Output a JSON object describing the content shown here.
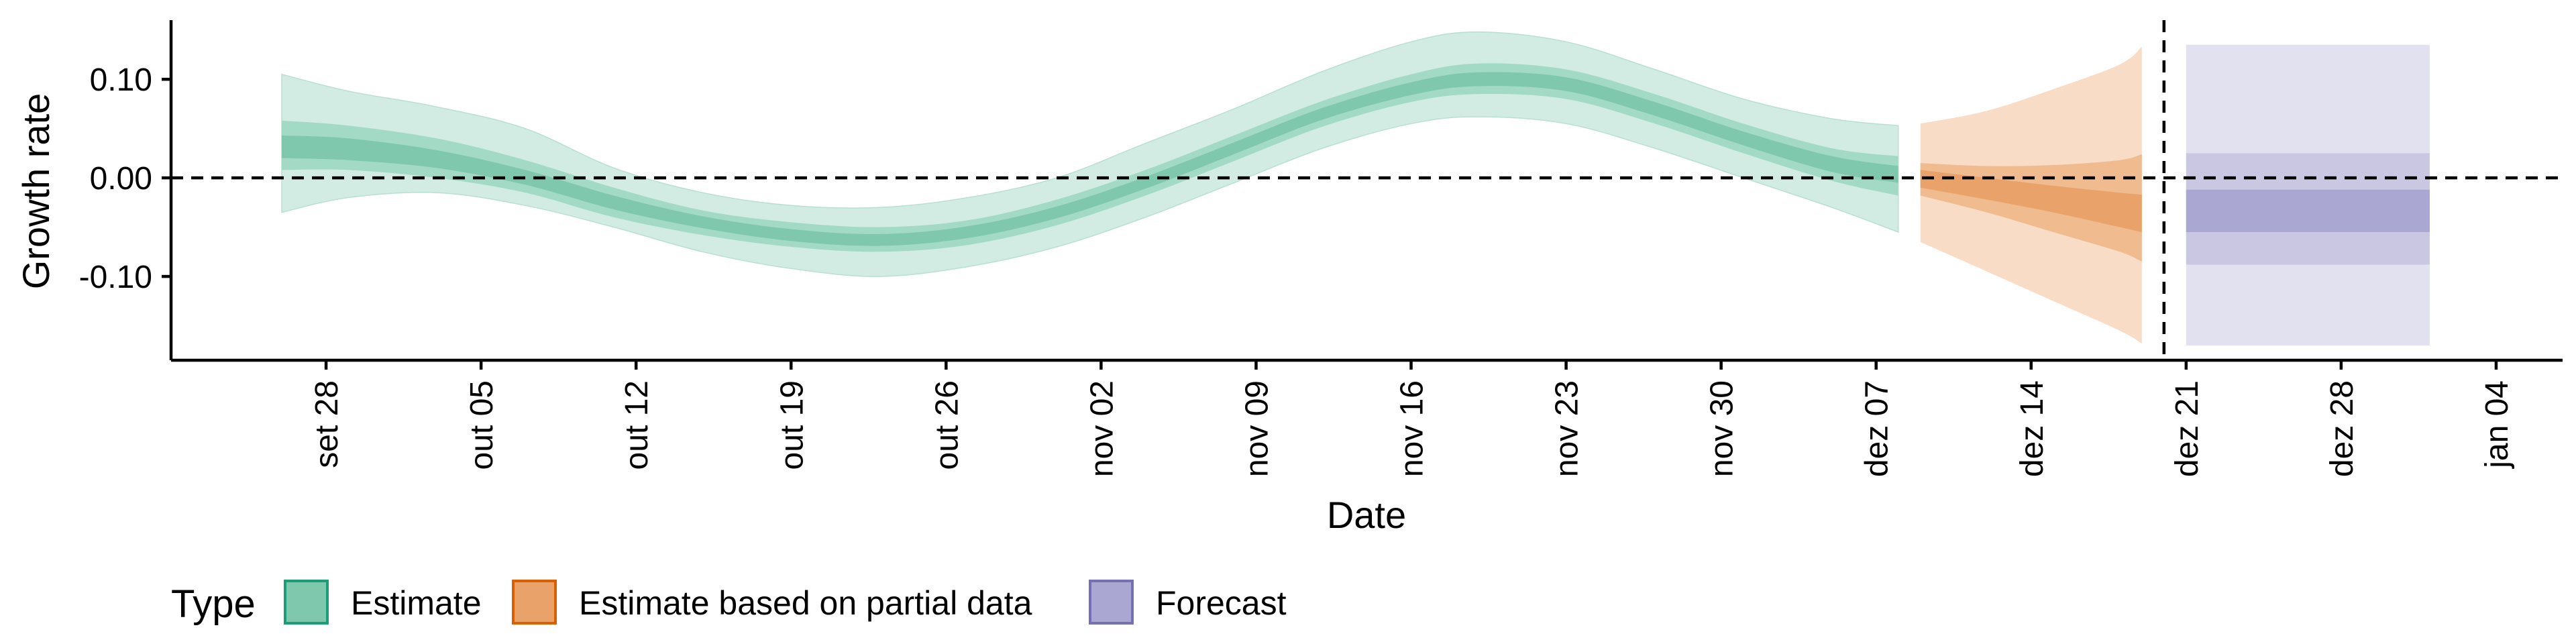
{
  "chart_data": {
    "type": "area",
    "xlabel": "Date",
    "ylabel": "Growth rate",
    "x_axis_type": "date",
    "xlim": [
      "2020-09-21",
      "2021-01-07"
    ],
    "ylim": [
      -0.185,
      0.16
    ],
    "y_ticks": [
      {
        "value": 0.1,
        "label": "0.10"
      },
      {
        "value": 0.0,
        "label": "0.00"
      },
      {
        "value": -0.1,
        "label": "-0.10"
      }
    ],
    "x_ticks": [
      {
        "date": "2020-09-28",
        "label": "set 28"
      },
      {
        "date": "2020-10-05",
        "label": "out 05"
      },
      {
        "date": "2020-10-12",
        "label": "out 12"
      },
      {
        "date": "2020-10-19",
        "label": "out 19"
      },
      {
        "date": "2020-10-26",
        "label": "out 26"
      },
      {
        "date": "2020-11-02",
        "label": "nov 02"
      },
      {
        "date": "2020-11-09",
        "label": "nov 09"
      },
      {
        "date": "2020-11-16",
        "label": "nov 16"
      },
      {
        "date": "2020-11-23",
        "label": "nov 23"
      },
      {
        "date": "2020-11-30",
        "label": "nov 30"
      },
      {
        "date": "2020-12-07",
        "label": "dez 07"
      },
      {
        "date": "2020-12-14",
        "label": "dez 14"
      },
      {
        "date": "2020-12-21",
        "label": "dez 21"
      },
      {
        "date": "2020-12-28",
        "label": "dez 28"
      },
      {
        "date": "2021-01-04",
        "label": "jan 04"
      }
    ],
    "reference_lines": {
      "horizontal_y": 0.0,
      "vertical_date": "2020-12-20",
      "style": "dashed"
    },
    "legend": {
      "title": "Type",
      "position": "bottom-left",
      "entries": [
        {
          "label": "Estimate",
          "fill": "#7fc8ad",
          "stroke": "#1b9e77"
        },
        {
          "label": "Estimate based on partial data",
          "fill": "#e9a36a",
          "stroke": "#d95f02"
        },
        {
          "label": "Forecast",
          "fill": "#aaa8d2",
          "stroke": "#7570b3"
        }
      ]
    },
    "series": [
      {
        "name": "Estimate",
        "colors": {
          "outer": "#d2ece3",
          "mid": "#a3dac5",
          "inner": "#7fc8ad"
        },
        "points": [
          {
            "date": "2020-09-26",
            "median": 0.03,
            "lo90": -0.035,
            "hi90": 0.105,
            "lo50": 0.008,
            "hi50": 0.058,
            "lo20": 0.02,
            "hi20": 0.043
          },
          {
            "date": "2020-09-29",
            "median": 0.028,
            "lo90": -0.02,
            "hi90": 0.088,
            "lo50": 0.008,
            "hi50": 0.053,
            "lo20": 0.018,
            "hi20": 0.04
          },
          {
            "date": "2020-10-03",
            "median": 0.018,
            "lo90": -0.015,
            "hi90": 0.072,
            "lo50": 0.0,
            "hi50": 0.04,
            "lo20": 0.01,
            "hi20": 0.028
          },
          {
            "date": "2020-10-07",
            "median": 0.0,
            "lo90": -0.028,
            "hi90": 0.05,
            "lo50": -0.015,
            "hi50": 0.018,
            "lo20": -0.007,
            "hi20": 0.008
          },
          {
            "date": "2020-10-11",
            "median": -0.025,
            "lo90": -0.05,
            "hi90": 0.01,
            "lo50": -0.04,
            "hi50": -0.01,
            "lo20": -0.032,
            "hi20": -0.018
          },
          {
            "date": "2020-10-15",
            "median": -0.045,
            "lo90": -0.075,
            "hi90": -0.015,
            "lo50": -0.058,
            "hi50": -0.033,
            "lo20": -0.051,
            "hi20": -0.039
          },
          {
            "date": "2020-10-19",
            "median": -0.058,
            "lo90": -0.092,
            "hi90": -0.028,
            "lo50": -0.07,
            "hi50": -0.045,
            "lo20": -0.064,
            "hi20": -0.052
          },
          {
            "date": "2020-10-23",
            "median": -0.063,
            "lo90": -0.1,
            "hi90": -0.03,
            "lo50": -0.075,
            "hi50": -0.05,
            "lo20": -0.069,
            "hi20": -0.057
          },
          {
            "date": "2020-10-27",
            "median": -0.055,
            "lo90": -0.09,
            "hi90": -0.02,
            "lo50": -0.068,
            "hi50": -0.043,
            "lo20": -0.061,
            "hi20": -0.049
          },
          {
            "date": "2020-10-31",
            "median": -0.035,
            "lo90": -0.07,
            "hi90": 0.0,
            "lo50": -0.048,
            "hi50": -0.022,
            "lo20": -0.041,
            "hi20": -0.029
          },
          {
            "date": "2020-11-04",
            "median": -0.005,
            "lo90": -0.04,
            "hi90": 0.035,
            "lo50": -0.018,
            "hi50": 0.008,
            "lo20": -0.011,
            "hi20": 0.001
          },
          {
            "date": "2020-11-08",
            "median": 0.03,
            "lo90": -0.005,
            "hi90": 0.07,
            "lo50": 0.017,
            "hi50": 0.043,
            "lo20": 0.024,
            "hi20": 0.036
          },
          {
            "date": "2020-11-12",
            "median": 0.065,
            "lo90": 0.03,
            "hi90": 0.108,
            "lo50": 0.052,
            "hi50": 0.078,
            "lo20": 0.059,
            "hi20": 0.071
          },
          {
            "date": "2020-11-16",
            "median": 0.09,
            "lo90": 0.055,
            "hi90": 0.138,
            "lo50": 0.077,
            "hi50": 0.105,
            "lo20": 0.084,
            "hi20": 0.097
          },
          {
            "date": "2020-11-19",
            "median": 0.1,
            "lo90": 0.062,
            "hi90": 0.148,
            "lo50": 0.085,
            "hi50": 0.116,
            "lo20": 0.093,
            "hi20": 0.107
          },
          {
            "date": "2020-11-23",
            "median": 0.095,
            "lo90": 0.055,
            "hi90": 0.138,
            "lo50": 0.08,
            "hi50": 0.11,
            "lo20": 0.088,
            "hi20": 0.102
          },
          {
            "date": "2020-11-27",
            "median": 0.07,
            "lo90": 0.03,
            "hi90": 0.11,
            "lo50": 0.055,
            "hi50": 0.085,
            "lo20": 0.063,
            "hi20": 0.077
          },
          {
            "date": "2020-12-01",
            "median": 0.04,
            "lo90": 0.0,
            "hi90": 0.08,
            "lo50": 0.025,
            "hi50": 0.055,
            "lo20": 0.033,
            "hi20": 0.047
          },
          {
            "date": "2020-12-05",
            "median": 0.015,
            "lo90": -0.03,
            "hi90": 0.06,
            "lo50": -0.003,
            "hi50": 0.03,
            "lo20": 0.006,
            "hi20": 0.022
          },
          {
            "date": "2020-12-08",
            "median": 0.005,
            "lo90": -0.055,
            "hi90": 0.053,
            "lo50": -0.018,
            "hi50": 0.022,
            "lo20": -0.005,
            "hi20": 0.012
          }
        ]
      },
      {
        "name": "Estimate based on partial data",
        "colors": {
          "outer": "#f8dcc6",
          "mid": "#f0bb8f",
          "inner": "#e9a36a"
        },
        "points": [
          {
            "date": "2020-12-09",
            "median": 0.0,
            "lo90": -0.065,
            "hi90": 0.055,
            "lo50": -0.018,
            "hi50": 0.015,
            "lo20": -0.01,
            "hi20": 0.008
          },
          {
            "date": "2020-12-12",
            "median": -0.012,
            "lo90": -0.095,
            "hi90": 0.068,
            "lo50": -0.035,
            "hi50": 0.012,
            "lo20": -0.022,
            "hi20": 0.0
          },
          {
            "date": "2020-12-15",
            "median": -0.022,
            "lo90": -0.125,
            "hi90": 0.09,
            "lo50": -0.055,
            "hi50": 0.013,
            "lo20": -0.035,
            "hi20": -0.008
          },
          {
            "date": "2020-12-18",
            "median": -0.032,
            "lo90": -0.155,
            "hi90": 0.115,
            "lo50": -0.075,
            "hi50": 0.018,
            "lo20": -0.05,
            "hi20": -0.015
          },
          {
            "date": "2020-12-19",
            "median": -0.035,
            "lo90": -0.168,
            "hi90": 0.133,
            "lo50": -0.085,
            "hi50": 0.024,
            "lo20": -0.055,
            "hi20": -0.017
          }
        ]
      },
      {
        "name": "Forecast",
        "colors": {
          "outer": "#e2e1f0",
          "mid": "#c9c7e2",
          "inner": "#aaa8d2"
        },
        "points": [
          {
            "date": "2020-12-21",
            "median": -0.035,
            "lo90": -0.17,
            "hi90": 0.135,
            "lo50": -0.088,
            "hi50": 0.025,
            "lo20": -0.055,
            "hi20": -0.012
          },
          {
            "date": "2021-01-01",
            "median": -0.035,
            "lo90": -0.17,
            "hi90": 0.135,
            "lo50": -0.088,
            "hi50": 0.025,
            "lo20": -0.055,
            "hi20": -0.012
          }
        ]
      }
    ]
  }
}
